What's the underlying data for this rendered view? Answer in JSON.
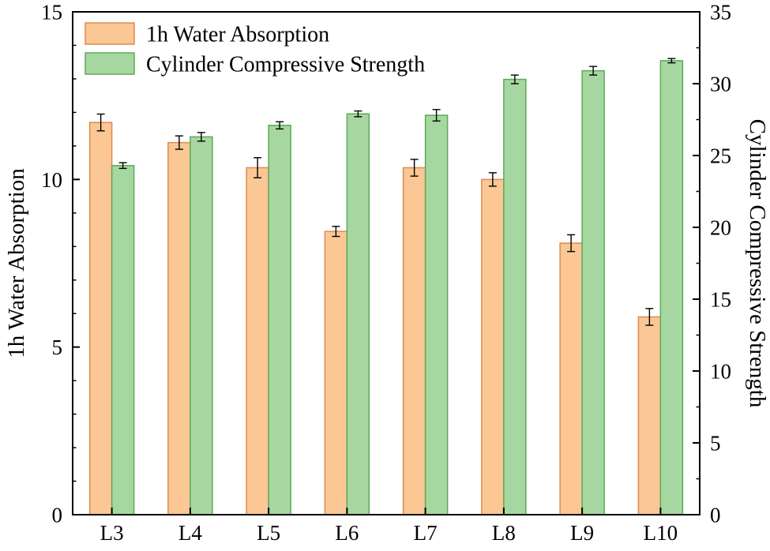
{
  "chart_data": {
    "type": "bar",
    "categories": [
      "L3",
      "L4",
      "L5",
      "L6",
      "L7",
      "L8",
      "L9",
      "L10"
    ],
    "series": [
      {
        "name": "1h Water Absorption",
        "axis": "left",
        "values": [
          11.7,
          11.1,
          10.35,
          8.45,
          10.35,
          10.0,
          8.1,
          5.9
        ],
        "errors": [
          0.25,
          0.2,
          0.3,
          0.15,
          0.25,
          0.2,
          0.25,
          0.25
        ],
        "fill": "#FAC795",
        "stroke": "#E08A4E"
      },
      {
        "name": "Cylinder Compressive Strength",
        "axis": "right",
        "values": [
          24.3,
          26.3,
          27.1,
          27.9,
          27.8,
          30.3,
          30.9,
          31.6
        ],
        "errors": [
          0.2,
          0.3,
          0.25,
          0.2,
          0.4,
          0.3,
          0.3,
          0.15
        ],
        "fill": "#A7D7A0",
        "stroke": "#5BAB57"
      }
    ],
    "axes": {
      "left": {
        "label": "1h Water Absorption",
        "min": 0,
        "max": 15,
        "major_step": 5,
        "minor_step": 1,
        "ticks": [
          0,
          5,
          10,
          15
        ]
      },
      "right": {
        "label": "Cylinder Compressive Strength",
        "min": 0,
        "max": 35,
        "major_step": 5,
        "minor_step": 2.5,
        "ticks": [
          0,
          5,
          10,
          15,
          20,
          25,
          30,
          35
        ]
      },
      "x": {
        "tick_labels": [
          "L3",
          "L4",
          "L5",
          "L6",
          "L7",
          "L8",
          "L9",
          "L10"
        ]
      }
    },
    "legend": {
      "position": "top-left-inside"
    },
    "style": {
      "frame_color": "#000000",
      "error_bar_color": "#000000",
      "background": "#ffffff"
    }
  }
}
